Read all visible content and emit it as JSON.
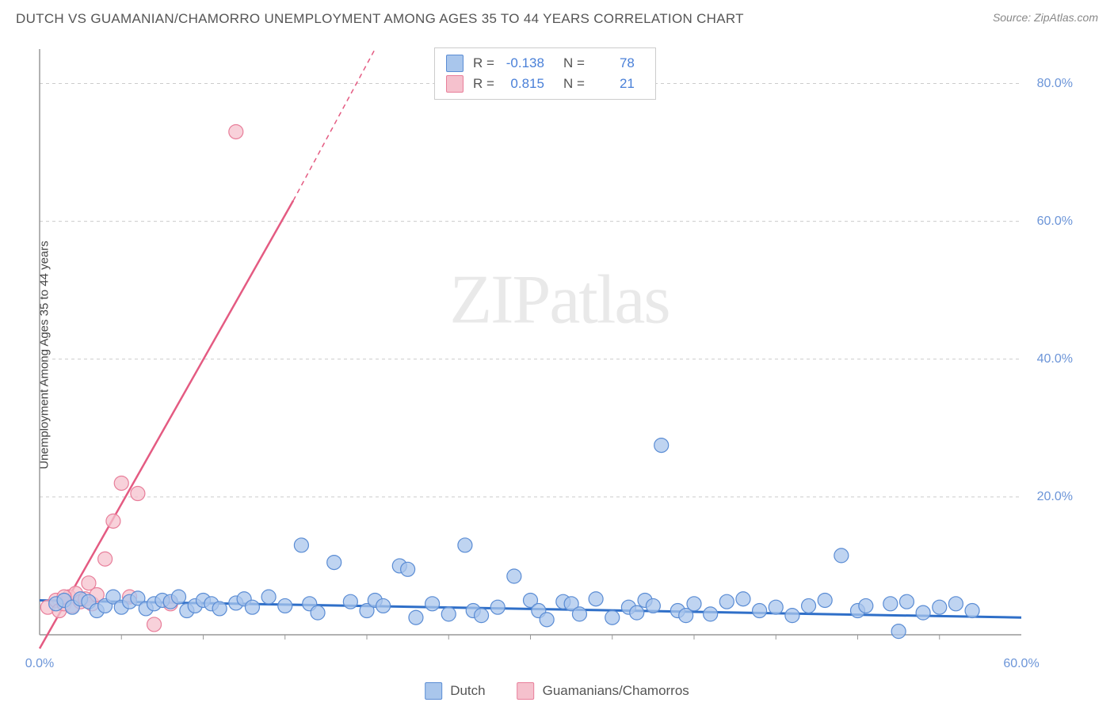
{
  "title": "DUTCH VS GUAMANIAN/CHAMORRO UNEMPLOYMENT AMONG AGES 35 TO 44 YEARS CORRELATION CHART",
  "source": "Source: ZipAtlas.com",
  "y_axis_label": "Unemployment Among Ages 35 to 44 years",
  "watermark_a": "ZIP",
  "watermark_b": "atlas",
  "chart": {
    "type": "scatter",
    "xlim": [
      0,
      60
    ],
    "ylim": [
      0,
      85
    ],
    "x_ticks": [
      0,
      60
    ],
    "x_tick_labels": [
      "0.0%",
      "60.0%"
    ],
    "x_minor_ticks": [
      5,
      10,
      15,
      20,
      25,
      30,
      35,
      40,
      45,
      50,
      55
    ],
    "y_ticks": [
      20,
      40,
      60,
      80
    ],
    "y_tick_labels": [
      "20.0%",
      "40.0%",
      "60.0%",
      "80.0%"
    ],
    "background_color": "#ffffff",
    "grid_color": "#cccccc",
    "axis_color": "#999999",
    "series": [
      {
        "name": "Dutch",
        "fill": "#a9c6ec",
        "stroke": "#5a8cd4",
        "line_color": "#2f6fc8",
        "marker_radius": 9,
        "stats": {
          "R": "-0.138",
          "N": "78"
        },
        "trend": {
          "x1": 0,
          "y1": 5.0,
          "x2": 60,
          "y2": 2.5
        },
        "points": [
          [
            1,
            4.5
          ],
          [
            1.5,
            5
          ],
          [
            2,
            4
          ],
          [
            2.5,
            5.2
          ],
          [
            3,
            4.8
          ],
          [
            3.5,
            3.5
          ],
          [
            4,
            4.2
          ],
          [
            4.5,
            5.5
          ],
          [
            5,
            4.0
          ],
          [
            5.5,
            4.8
          ],
          [
            6,
            5.3
          ],
          [
            6.5,
            3.8
          ],
          [
            7,
            4.5
          ],
          [
            7.5,
            5.0
          ],
          [
            8,
            4.8
          ],
          [
            8.5,
            5.5
          ],
          [
            9,
            3.5
          ],
          [
            9.5,
            4.2
          ],
          [
            10,
            5.0
          ],
          [
            10.5,
            4.5
          ],
          [
            11,
            3.8
          ],
          [
            12,
            4.6
          ],
          [
            12.5,
            5.2
          ],
          [
            13,
            4.0
          ],
          [
            14,
            5.5
          ],
          [
            15,
            4.2
          ],
          [
            16,
            13
          ],
          [
            16.5,
            4.5
          ],
          [
            17,
            3.2
          ],
          [
            18,
            10.5
          ],
          [
            19,
            4.8
          ],
          [
            20,
            3.5
          ],
          [
            20.5,
            5.0
          ],
          [
            21,
            4.2
          ],
          [
            22,
            10
          ],
          [
            22.5,
            9.5
          ],
          [
            23,
            2.5
          ],
          [
            24,
            4.5
          ],
          [
            25,
            3.0
          ],
          [
            26,
            13
          ],
          [
            26.5,
            3.5
          ],
          [
            27,
            2.8
          ],
          [
            28,
            4.0
          ],
          [
            29,
            8.5
          ],
          [
            30,
            5.0
          ],
          [
            30.5,
            3.5
          ],
          [
            31,
            2.2
          ],
          [
            32,
            4.8
          ],
          [
            32.5,
            4.5
          ],
          [
            33,
            3.0
          ],
          [
            34,
            5.2
          ],
          [
            35,
            2.5
          ],
          [
            36,
            4.0
          ],
          [
            36.5,
            3.2
          ],
          [
            37,
            5.0
          ],
          [
            37.5,
            4.2
          ],
          [
            38,
            27.5
          ],
          [
            39,
            3.5
          ],
          [
            39.5,
            2.8
          ],
          [
            40,
            4.5
          ],
          [
            41,
            3.0
          ],
          [
            42,
            4.8
          ],
          [
            43,
            5.2
          ],
          [
            44,
            3.5
          ],
          [
            45,
            4.0
          ],
          [
            46,
            2.8
          ],
          [
            47,
            4.2
          ],
          [
            48,
            5.0
          ],
          [
            49,
            11.5
          ],
          [
            50,
            3.5
          ],
          [
            50.5,
            4.2
          ],
          [
            52,
            4.5
          ],
          [
            52.5,
            0.5
          ],
          [
            53,
            4.8
          ],
          [
            54,
            3.2
          ],
          [
            55,
            4.0
          ],
          [
            56,
            4.5
          ],
          [
            57,
            3.5
          ]
        ]
      },
      {
        "name": "Guamanians/Chamorros",
        "fill": "#f5c1cd",
        "stroke": "#e87e9a",
        "line_color": "#e45b82",
        "marker_radius": 9,
        "stats": {
          "R": "0.815",
          "N": "21"
        },
        "trend_solid": {
          "x1": 0,
          "y1": -2,
          "x2": 15.5,
          "y2": 63
        },
        "trend_dashed": {
          "x1": 15.5,
          "y1": 63,
          "x2": 20.5,
          "y2": 85
        },
        "points": [
          [
            0.5,
            4
          ],
          [
            1,
            5
          ],
          [
            1.2,
            3.5
          ],
          [
            1.5,
            4.5
          ],
          [
            1.8,
            5.5
          ],
          [
            2,
            4.2
          ],
          [
            2.2,
            6
          ],
          [
            2.5,
            4.8
          ],
          [
            2.8,
            5.2
          ],
          [
            3,
            7.5
          ],
          [
            3.2,
            4.5
          ],
          [
            3.5,
            5.8
          ],
          [
            4,
            11
          ],
          [
            4.5,
            16.5
          ],
          [
            5,
            22
          ],
          [
            5.5,
            5.5
          ],
          [
            6,
            20.5
          ],
          [
            7,
            1.5
          ],
          [
            8,
            4.5
          ],
          [
            12,
            73
          ],
          [
            1.5,
            5.5
          ]
        ]
      }
    ]
  },
  "legend": {
    "blue": {
      "label": "Dutch",
      "fill": "#a9c6ec",
      "stroke": "#5a8cd4"
    },
    "pink": {
      "label": "Guamanians/Chamorros",
      "fill": "#f5c1cd",
      "stroke": "#e87e9a"
    }
  }
}
